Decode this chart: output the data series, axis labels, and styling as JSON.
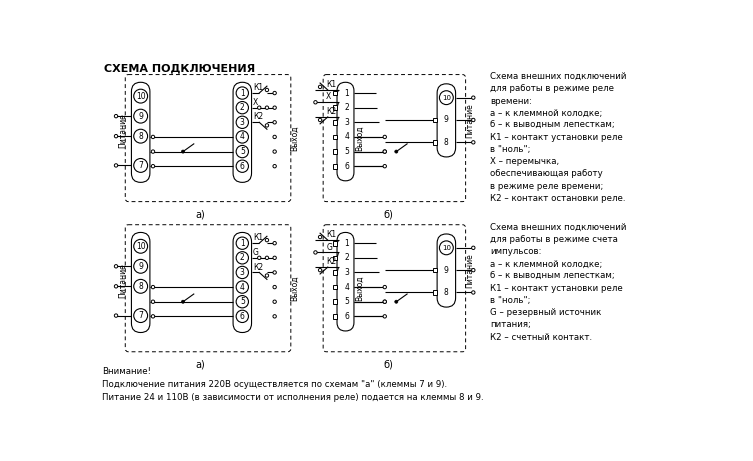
{
  "title": "СХЕМА ПОДКЛЮЧЕНИЯ",
  "bg_color": "#ffffff",
  "line_color": "#000000",
  "text_color": "#000000",
  "right_text_top": "Схема внешних подключений\nдля работы в режиме реле\nвремени:\nа – к клеммной колодке;\nб – к выводным лепесткам;\nК1 – контакт установки реле\nв \"ноль\";\nХ – перемычка,\nобеспечивающая работу\nв режиме реле времени;\nК2 – контакт остановки реле.",
  "right_text_bottom": "Схема внешних подключений\nдля работы в режиме счета\nимпульсов:\nа – к клеммной колодке;\nб – к выводным лепесткам;\nК1 – контакт установки реле\nв \"ноль\";\nG – резервный источник\nпитания;\nК2 – счетный контакт.",
  "bottom_text": "Внимание!\nПодключение питания 220В осуществляется по схемам \"а\" (клеммы 7 и 9).\nПитание 24 и 110В (в зависимости от исполнения реле) подается на клеммы 8 и 9.",
  "label_a": "а)",
  "label_b": "б)"
}
